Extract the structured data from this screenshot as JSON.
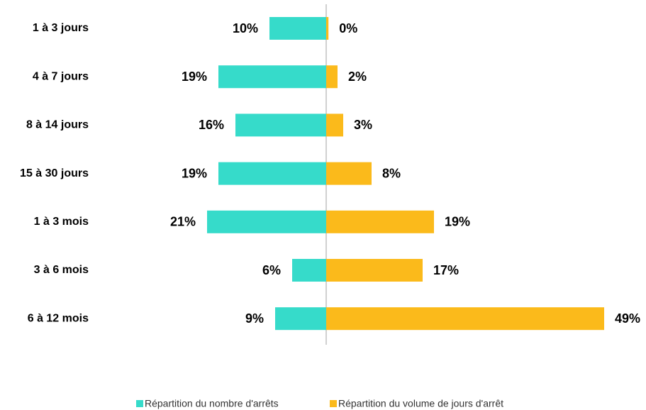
{
  "chart_data": {
    "type": "butterfly-bar",
    "categories": [
      "1 à 3 jours",
      "4 à 7 jours",
      "8 à 14 jours",
      "15 à 30 jours",
      "1 à 3 mois",
      "3 à 6 mois",
      "6 à 12 mois"
    ],
    "series": [
      {
        "name": "Répartition du nombre d'arrêts",
        "color": "#36dbca",
        "side": "left",
        "values": [
          10,
          19,
          16,
          19,
          21,
          6,
          9
        ],
        "value_labels": [
          "10%",
          "19%",
          "16%",
          "19%",
          "21%",
          "6%",
          "9%"
        ]
      },
      {
        "name": "Répartition du volume de jours d'arrêt",
        "color": "#fbba1b",
        "side": "right",
        "values": [
          0.4,
          2,
          3,
          8,
          19,
          17,
          49
        ],
        "value_labels": [
          "0%",
          "2%",
          "3%",
          "8%",
          "19%",
          "17%",
          "49%"
        ]
      }
    ]
  }
}
